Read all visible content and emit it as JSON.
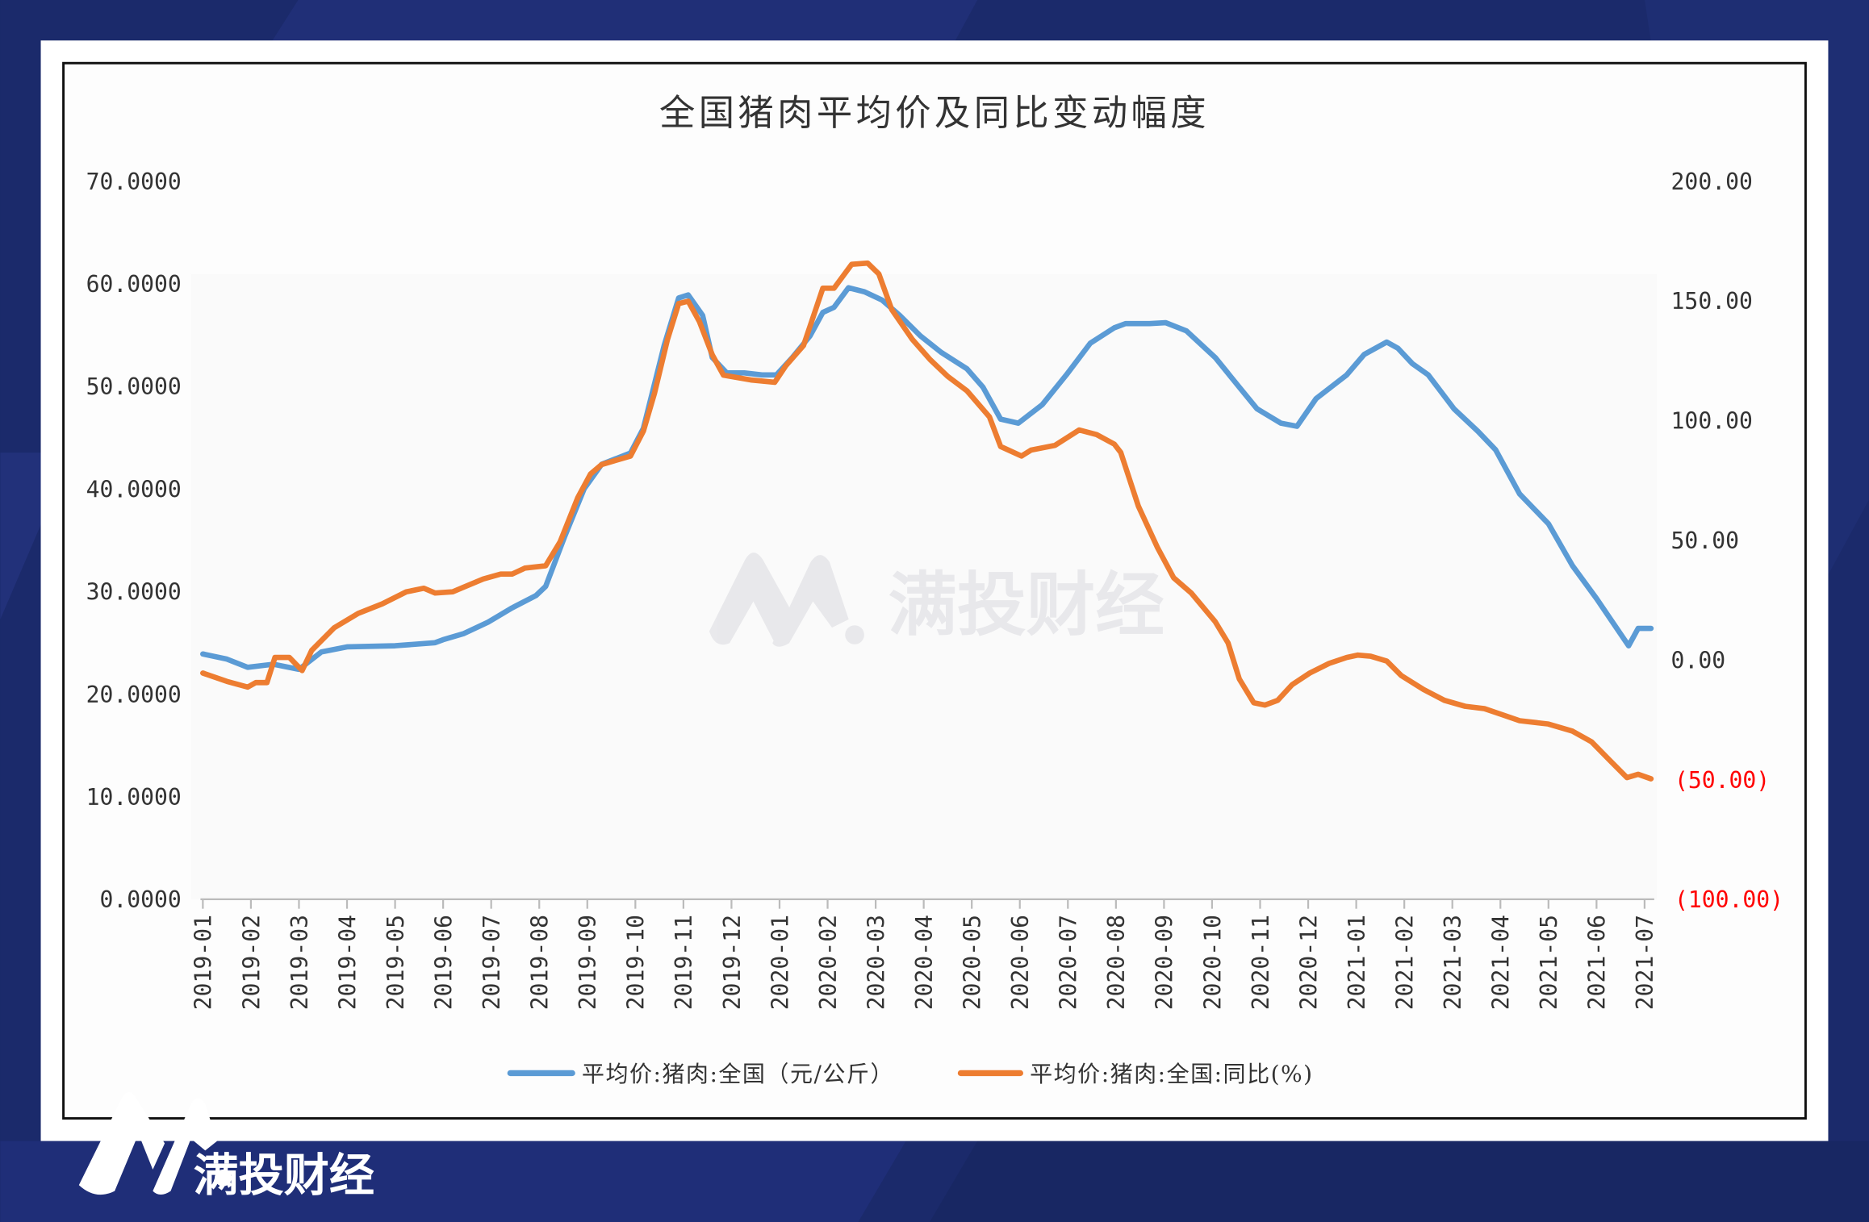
{
  "colors": {
    "price": "#5b9bd5",
    "yoy": "#ed7d31",
    "negative_label": "#ff0000",
    "background": "#1b2a6b"
  },
  "watermark": {
    "text": "满投财经"
  },
  "footer": {
    "brand": "满投财经"
  },
  "chart_data": {
    "type": "line",
    "title": "全国猪肉平均价及同比变动幅度",
    "legend_position": "bottom",
    "grid": false,
    "x_tick_labels": [
      "2019-01",
      "2019-02",
      "2019-03",
      "2019-04",
      "2019-05",
      "2019-06",
      "2019-07",
      "2019-08",
      "2019-09",
      "2019-10",
      "2019-11",
      "2019-12",
      "2020-01",
      "2020-02",
      "2020-03",
      "2020-04",
      "2020-05",
      "2020-06",
      "2020-07",
      "2020-08",
      "2020-09",
      "2020-10",
      "2020-11",
      "2020-12",
      "2021-01",
      "2021-02",
      "2021-03",
      "2021-04",
      "2021-05",
      "2021-06",
      "2021-07"
    ],
    "y_left": {
      "range": [
        0,
        70
      ],
      "tick_labels": [
        "0.0000",
        "10.0000",
        "20.0000",
        "30.0000",
        "40.0000",
        "50.0000",
        "60.0000",
        "70.0000"
      ]
    },
    "y_right": {
      "range": [
        -100,
        200
      ],
      "tick_labels": [
        "(100.00)",
        "(50.00)",
        "0.00",
        "50.00",
        "100.00",
        "150.00",
        "200.00"
      ]
    },
    "series": [
      {
        "name": "平均价:猪肉:全国（元/公斤）",
        "axis": "left",
        "points": [
          [
            "2019-01-01",
            23.9
          ],
          [
            "2019-01-16",
            23.4
          ],
          [
            "2019-01-29",
            22.6
          ],
          [
            "2019-02-15",
            22.9
          ],
          [
            "2019-03-01",
            22.4
          ],
          [
            "2019-03-15",
            24.1
          ],
          [
            "2019-04-01",
            24.6
          ],
          [
            "2019-05-01",
            24.7
          ],
          [
            "2019-05-26",
            25.0
          ],
          [
            "2019-06-01",
            25.3
          ],
          [
            "2019-06-14",
            25.9
          ],
          [
            "2019-06-29",
            27.0
          ],
          [
            "2019-07-14",
            28.4
          ],
          [
            "2019-07-29",
            29.6
          ],
          [
            "2019-08-05",
            30.5
          ],
          [
            "2019-08-17",
            35.4
          ],
          [
            "2019-08-29",
            40.0
          ],
          [
            "2019-09-10",
            42.4
          ],
          [
            "2019-09-28",
            43.5
          ],
          [
            "2019-10-06",
            45.9
          ],
          [
            "2019-10-19",
            54.0
          ],
          [
            "2019-10-28",
            58.6
          ],
          [
            "2019-11-04",
            58.9
          ],
          [
            "2019-11-13",
            56.9
          ],
          [
            "2019-11-19",
            52.8
          ],
          [
            "2019-11-28",
            51.3
          ],
          [
            "2019-12-09",
            51.3
          ],
          [
            "2019-12-20",
            51.1
          ],
          [
            "2019-12-29",
            51.1
          ],
          [
            "2020-01-09",
            52.8
          ],
          [
            "2020-01-20",
            54.9
          ],
          [
            "2020-01-28",
            57.2
          ],
          [
            "2020-02-05",
            57.7
          ],
          [
            "2020-02-14",
            59.6
          ],
          [
            "2020-02-24",
            59.2
          ],
          [
            "2020-03-05",
            58.4
          ],
          [
            "2020-03-16",
            56.9
          ],
          [
            "2020-03-29",
            54.9
          ],
          [
            "2020-04-12",
            53.3
          ],
          [
            "2020-04-28",
            51.7
          ],
          [
            "2020-05-08",
            49.9
          ],
          [
            "2020-05-19",
            46.8
          ],
          [
            "2020-05-30",
            46.4
          ],
          [
            "2020-06-15",
            48.2
          ],
          [
            "2020-06-30",
            51.1
          ],
          [
            "2020-07-15",
            54.2
          ],
          [
            "2020-07-30",
            55.7
          ],
          [
            "2020-08-07",
            56.1
          ],
          [
            "2020-08-22",
            56.1
          ],
          [
            "2020-09-02",
            56.2
          ],
          [
            "2020-09-15",
            55.4
          ],
          [
            "2020-10-03",
            52.8
          ],
          [
            "2020-10-18",
            49.9
          ],
          [
            "2020-10-29",
            47.8
          ],
          [
            "2020-11-14",
            46.4
          ],
          [
            "2020-11-24",
            46.1
          ],
          [
            "2020-12-06",
            48.8
          ],
          [
            "2020-12-25",
            51.1
          ],
          [
            "2021-01-06",
            53.1
          ],
          [
            "2021-01-20",
            54.3
          ],
          [
            "2021-01-27",
            53.7
          ],
          [
            "2021-02-06",
            52.2
          ],
          [
            "2021-02-16",
            51.1
          ],
          [
            "2021-03-02",
            47.8
          ],
          [
            "2021-03-17",
            45.6
          ],
          [
            "2021-03-28",
            43.8
          ],
          [
            "2021-04-13",
            39.5
          ],
          [
            "2021-05-01",
            36.6
          ],
          [
            "2021-05-16",
            32.5
          ],
          [
            "2021-06-01",
            29.3
          ],
          [
            "2021-06-21",
            24.7
          ],
          [
            "2021-06-27",
            26.4
          ],
          [
            "2021-07-05",
            26.4
          ]
        ]
      },
      {
        "name": "平均价:猪肉:全国:同比(%)",
        "axis": "right",
        "points": [
          [
            "2019-01-01",
            -5.5
          ],
          [
            "2019-01-16",
            -9.0
          ],
          [
            "2019-01-29",
            -11.4
          ],
          [
            "2019-02-04",
            -9.5
          ],
          [
            "2019-02-11",
            -9.5
          ],
          [
            "2019-02-16",
            1.0
          ],
          [
            "2019-02-25",
            1.0
          ],
          [
            "2019-03-03",
            -4.5
          ],
          [
            "2019-03-09",
            4.0
          ],
          [
            "2019-03-23",
            13.4
          ],
          [
            "2019-04-08",
            19.4
          ],
          [
            "2019-04-23",
            23.4
          ],
          [
            "2019-05-08",
            28.4
          ],
          [
            "2019-05-19",
            29.9
          ],
          [
            "2019-05-26",
            27.9
          ],
          [
            "2019-06-07",
            28.4
          ],
          [
            "2019-06-14",
            30.4
          ],
          [
            "2019-06-26",
            33.8
          ],
          [
            "2019-07-07",
            35.8
          ],
          [
            "2019-07-14",
            35.8
          ],
          [
            "2019-07-22",
            38.3
          ],
          [
            "2019-08-05",
            39.3
          ],
          [
            "2019-08-14",
            49.3
          ],
          [
            "2019-08-25",
            67.7
          ],
          [
            "2019-09-03",
            77.6
          ],
          [
            "2019-09-10",
            81.6
          ],
          [
            "2019-09-28",
            85.1
          ],
          [
            "2019-10-06",
            95.5
          ],
          [
            "2019-10-13",
            111.5
          ],
          [
            "2019-10-21",
            133.8
          ],
          [
            "2019-10-28",
            148.8
          ],
          [
            "2019-11-04",
            149.8
          ],
          [
            "2019-11-11",
            141.3
          ],
          [
            "2019-11-19",
            127.4
          ],
          [
            "2019-11-26",
            118.9
          ],
          [
            "2019-12-13",
            116.9
          ],
          [
            "2019-12-28",
            115.9
          ],
          [
            "2020-01-05",
            122.9
          ],
          [
            "2020-01-16",
            131.3
          ],
          [
            "2020-01-28",
            155.2
          ],
          [
            "2020-02-05",
            155.2
          ],
          [
            "2020-02-16",
            165.2
          ],
          [
            "2020-02-26",
            165.7
          ],
          [
            "2020-03-03",
            161.2
          ],
          [
            "2020-03-11",
            146.3
          ],
          [
            "2020-03-24",
            133.8
          ],
          [
            "2020-04-05",
            125.4
          ],
          [
            "2020-04-16",
            118.4
          ],
          [
            "2020-04-28",
            112.4
          ],
          [
            "2020-05-12",
            101.5
          ],
          [
            "2020-05-19",
            89.1
          ],
          [
            "2020-06-02",
            85.1
          ],
          [
            "2020-06-08",
            87.6
          ],
          [
            "2020-06-23",
            89.6
          ],
          [
            "2020-07-08",
            96.0
          ],
          [
            "2020-07-19",
            94.1
          ],
          [
            "2020-07-30",
            90.1
          ],
          [
            "2020-08-04",
            86.6
          ],
          [
            "2020-08-15",
            64.2
          ],
          [
            "2020-08-27",
            46.8
          ],
          [
            "2020-09-07",
            34.3
          ],
          [
            "2020-09-18",
            27.9
          ],
          [
            "2020-10-03",
            15.9
          ],
          [
            "2020-10-11",
            7.0
          ],
          [
            "2020-10-18",
            -8.0
          ],
          [
            "2020-10-27",
            -17.9
          ],
          [
            "2020-11-04",
            -18.9
          ],
          [
            "2020-11-12",
            -16.9
          ],
          [
            "2020-11-21",
            -10.4
          ],
          [
            "2020-12-02",
            -5.5
          ],
          [
            "2020-12-14",
            -1.5
          ],
          [
            "2020-12-25",
            1.0
          ],
          [
            "2021-01-02",
            2.0
          ],
          [
            "2021-01-10",
            1.5
          ],
          [
            "2021-01-20",
            -0.5
          ],
          [
            "2021-01-29",
            -6.5
          ],
          [
            "2021-02-13",
            -12.4
          ],
          [
            "2021-02-26",
            -16.9
          ],
          [
            "2021-03-09",
            -19.4
          ],
          [
            "2021-03-21",
            -20.4
          ],
          [
            "2021-04-02",
            -22.9
          ],
          [
            "2021-04-13",
            -25.4
          ],
          [
            "2021-05-01",
            -26.8
          ],
          [
            "2021-05-16",
            -29.8
          ],
          [
            "2021-05-28",
            -34.3
          ],
          [
            "2021-06-09",
            -41.8
          ],
          [
            "2021-06-20",
            -49.2
          ],
          [
            "2021-06-27",
            -47.8
          ],
          [
            "2021-07-05",
            -49.7
          ]
        ]
      }
    ]
  }
}
